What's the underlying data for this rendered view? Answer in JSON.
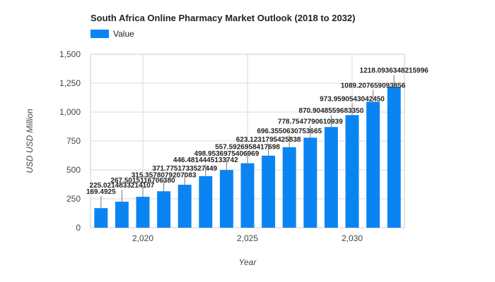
{
  "chart_data": {
    "type": "bar",
    "title": "South Africa Online Pharmacy Market Outlook (2018 to 2032)",
    "xlabel": "Year",
    "ylabel": "USD USD Million",
    "legend": {
      "position": "top-left",
      "entries": [
        "Value"
      ]
    },
    "grid": true,
    "ylim": [
      0,
      1500
    ],
    "xlim": [
      2017.5,
      2032.5
    ],
    "yticks": [
      0,
      250,
      500,
      750,
      1000,
      1250,
      1500
    ],
    "ytick_labels": [
      "0",
      "250",
      "500",
      "750",
      "1,000",
      "1,250",
      "1,500"
    ],
    "xticks": [
      2020,
      2025,
      2030
    ],
    "xtick_labels": [
      "2,020",
      "2,025",
      "2,030"
    ],
    "color": "#0b84f3",
    "series": [
      {
        "name": "Value",
        "x": [
          2018,
          2019,
          2020,
          2021,
          2022,
          2023,
          2024,
          2025,
          2026,
          2027,
          2028,
          2029,
          2030,
          2031,
          2032
        ],
        "values": [
          169.4925,
          225.0214833214107,
          267.501511670638,
          315.3578079207083,
          371.7751733527449,
          446.4814445133742,
          498.9536975406969,
          557.5926958417698,
          623.1231795425838,
          696.3550630753665,
          778.7547790610939,
          870.904855968335,
          973.959054304245,
          1089.207659093856,
          1218.0936348215996
        ],
        "labels": [
          "169.4925",
          "225.0214833214107",
          "267.5015116706380",
          "315.3578079207083",
          "371.7751733527449",
          "446.4814445133742",
          "498.9536975406969",
          "557.5926958417698",
          "623.1231795425838",
          "696.3550630753665",
          "778.7547790610939",
          "870.9048559683350",
          "973.9590543042450",
          "1089.207659093856",
          "1218.0936348215996"
        ]
      }
    ]
  }
}
